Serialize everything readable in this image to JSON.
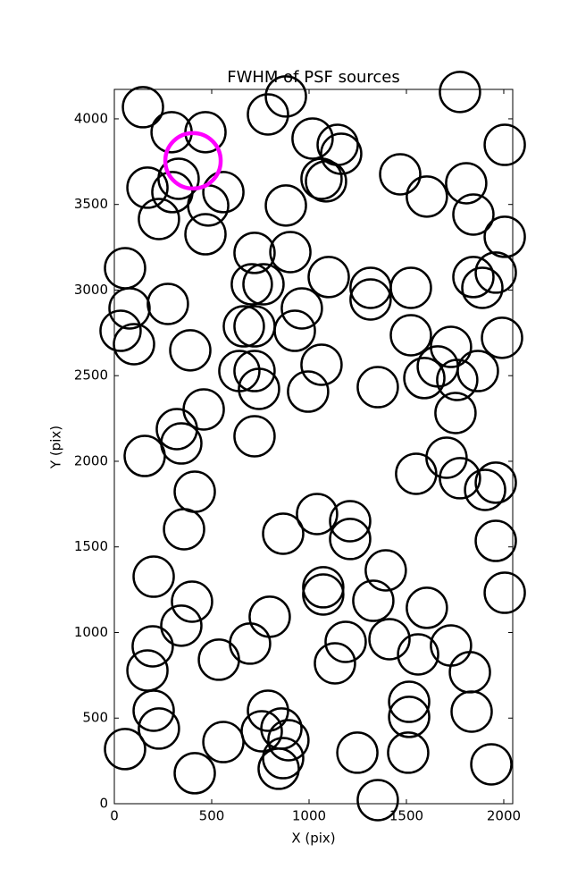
{
  "chart_data": {
    "type": "scatter",
    "title": "FWHM of PSF sources",
    "x_label": "X (pix)",
    "y_label": "Y (pix)",
    "xlim": [
      0,
      2046
    ],
    "ylim": [
      0,
      4172
    ],
    "xticks": [
      0,
      500,
      1000,
      1500,
      2000
    ],
    "yticks": [
      0,
      500,
      1000,
      1500,
      2000,
      2500,
      3000,
      3500,
      4000
    ],
    "series": [
      {
        "color": "#000000",
        "x": [
          147,
          789,
          881,
          1775,
          294,
          468,
          1018,
          1147,
          1165,
          2005,
          1468,
          1064,
          1087,
          330,
          170,
          298,
          560,
          482,
          881,
          1605,
          1807,
          1844,
          229,
          468,
          2005,
          720,
          904,
          55,
          766,
          706,
          1101,
          1959,
          1844,
          1890,
          1316,
          1316,
          1523,
          275,
          78,
          32,
          963,
          665,
          720,
          927,
          1523,
          1729,
          1991,
          101,
          390,
          1064,
          1661,
          1867,
          1592,
          1761,
          642,
          720,
          743,
          995,
          1353,
          1752,
          459,
          321,
          344,
          720,
          1706,
          156,
          1550,
          1775,
          1959,
          1904,
          413,
          1041,
          1211,
          1211,
          358,
          867,
          1959,
          1394,
          1073,
          1073,
          202,
          399,
          2005,
          1330,
          1605,
          798,
          344,
          1413,
          1729,
          197,
          697,
          1188,
          1560,
          1133,
          537,
          170,
          1826,
          1514,
          202,
          789,
          1514,
          1835,
          229,
          757,
          858,
          894,
          560,
          55,
          1248,
          1509,
          1936,
          867,
          844,
          413,
          1353
        ],
        "values": [
          4068,
          4026,
          4131,
          4157,
          3922,
          3922,
          3885,
          3848,
          3796,
          3848,
          3676,
          3650,
          3635,
          3650,
          3598,
          3572,
          3572,
          3494,
          3494,
          3546,
          3624,
          3441,
          3415,
          3326,
          3311,
          3217,
          3222,
          3128,
          3034,
          3034,
          3076,
          3102,
          3076,
          3013,
          3013,
          2945,
          3013,
          2919,
          2893,
          2762,
          2893,
          2788,
          2788,
          2762,
          2736,
          2668,
          2721,
          2684,
          2648,
          2564,
          2554,
          2527,
          2486,
          2475,
          2527,
          2527,
          2423,
          2407,
          2433,
          2282,
          2303,
          2188,
          2104,
          2146,
          2021,
          2031,
          1927,
          1901,
          1875,
          1833,
          1822,
          1692,
          1650,
          1546,
          1603,
          1577,
          1535,
          1363,
          1264,
          1222,
          1326,
          1180,
          1232,
          1185,
          1144,
          1092,
          1040,
          961,
          924,
          919,
          935,
          945,
          872,
          820,
          841,
          778,
          768,
          595,
          543,
          543,
          507,
          538,
          439,
          423,
          439,
          371,
          360,
          319,
          298,
          298,
          230,
          266,
          204,
          178,
          21
        ]
      },
      {
        "color": "#ff00ff",
        "x": [
          404
        ],
        "values": [
          3755
        ]
      }
    ]
  }
}
